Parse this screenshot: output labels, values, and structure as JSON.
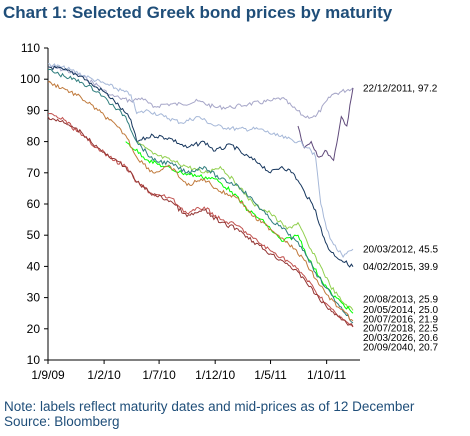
{
  "title": "Chart 1: Selected Greek bond prices by maturity",
  "note": "Note: labels reflect maturity dates and mid-prices as of 12 December",
  "source": "Source: Bloomberg",
  "chart_data": {
    "type": "line",
    "title": "Chart 1: Selected Greek bond prices by maturity",
    "xlabel": "",
    "ylabel": "",
    "ylim": [
      10,
      110
    ],
    "yticks": [
      10,
      20,
      30,
      40,
      50,
      60,
      70,
      80,
      90,
      100,
      110
    ],
    "xlim": [
      "2009-09-01",
      "2011-12-31"
    ],
    "xticks": [
      {
        "date": "2009-09-01",
        "label": "1/9/09"
      },
      {
        "date": "2010-02-01",
        "label": "1/2/10"
      },
      {
        "date": "2010-07-01",
        "label": "1/7/10"
      },
      {
        "date": "2010-12-01",
        "label": "1/12/10"
      },
      {
        "date": "2011-05-01",
        "label": "1/5/11"
      },
      {
        "date": "2011-10-01",
        "label": "1/10/11"
      }
    ],
    "grid": false,
    "legend": "end-labels",
    "series": [
      {
        "name": "22/12/2011, 97.2",
        "color": "#a6a6c8",
        "points": [
          [
            "2009-09-01",
            104
          ],
          [
            "2009-10-15",
            103
          ],
          [
            "2009-12-01",
            101
          ],
          [
            "2010-01-15",
            98
          ],
          [
            "2010-02-15",
            95
          ],
          [
            "2010-03-15",
            94
          ],
          [
            "2010-04-15",
            93
          ],
          [
            "2010-05-15",
            94
          ],
          [
            "2010-06-15",
            91
          ],
          [
            "2010-07-15",
            92
          ],
          [
            "2010-09-01",
            92
          ],
          [
            "2010-10-15",
            93
          ],
          [
            "2010-12-01",
            91
          ],
          [
            "2011-01-15",
            91
          ],
          [
            "2011-03-01",
            92
          ],
          [
            "2011-05-01",
            93
          ],
          [
            "2011-06-01",
            94
          ],
          [
            "2011-07-01",
            91
          ],
          [
            "2011-08-01",
            88
          ],
          [
            "2011-09-01",
            88
          ],
          [
            "2011-10-15",
            95
          ],
          [
            "2011-12-12",
            97.2
          ]
        ]
      },
      {
        "name": "22/12/2011, 97.2",
        "color": "#604a7b",
        "points": [
          [
            "2011-07-15",
            85
          ],
          [
            "2011-08-01",
            78
          ],
          [
            "2011-08-20",
            80
          ],
          [
            "2011-09-10",
            75
          ],
          [
            "2011-10-01",
            77
          ],
          [
            "2011-10-20",
            74
          ],
          [
            "2011-11-10",
            88
          ],
          [
            "2011-11-25",
            85
          ],
          [
            "2011-12-12",
            97.2
          ]
        ]
      },
      {
        "name": "20/03/2012, 45.5",
        "color": "#a6b8d8",
        "points": [
          [
            "2009-09-01",
            105
          ],
          [
            "2009-11-01",
            103
          ],
          [
            "2010-01-01",
            100
          ],
          [
            "2010-02-15",
            98
          ],
          [
            "2010-04-15",
            95
          ],
          [
            "2010-05-01",
            89
          ],
          [
            "2010-06-01",
            90
          ],
          [
            "2010-07-15",
            88
          ],
          [
            "2010-09-01",
            86
          ],
          [
            "2010-10-15",
            88
          ],
          [
            "2010-12-01",
            85
          ],
          [
            "2011-02-01",
            84
          ],
          [
            "2011-04-01",
            84
          ],
          [
            "2011-05-15",
            82
          ],
          [
            "2011-06-15",
            81
          ],
          [
            "2011-07-15",
            80
          ],
          [
            "2011-08-15",
            78
          ],
          [
            "2011-09-01",
            75
          ],
          [
            "2011-09-15",
            60
          ],
          [
            "2011-10-01",
            52
          ],
          [
            "2011-10-20",
            47
          ],
          [
            "2011-11-15",
            43
          ],
          [
            "2011-12-12",
            45.5
          ]
        ]
      },
      {
        "name": "04/02/2015, 39.9",
        "color": "#17375e",
        "points": [
          [
            "2009-09-01",
            104
          ],
          [
            "2009-10-15",
            103
          ],
          [
            "2009-12-01",
            101
          ],
          [
            "2010-01-01",
            98
          ],
          [
            "2010-02-01",
            96
          ],
          [
            "2010-03-01",
            93
          ],
          [
            "2010-04-15",
            87
          ],
          [
            "2010-05-01",
            80
          ],
          [
            "2010-06-15",
            82
          ],
          [
            "2010-08-01",
            81
          ],
          [
            "2010-09-15",
            78
          ],
          [
            "2010-11-01",
            80
          ],
          [
            "2010-12-01",
            77
          ],
          [
            "2011-01-15",
            79
          ],
          [
            "2011-02-15",
            76
          ],
          [
            "2011-04-01",
            73
          ],
          [
            "2011-05-01",
            70
          ],
          [
            "2011-06-01",
            72
          ],
          [
            "2011-07-01",
            70
          ],
          [
            "2011-08-01",
            64
          ],
          [
            "2011-09-01",
            58
          ],
          [
            "2011-09-20",
            50
          ],
          [
            "2011-10-10",
            45
          ],
          [
            "2011-11-10",
            42
          ],
          [
            "2011-12-12",
            39.9
          ]
        ]
      },
      {
        "name": "20/08/2013, 25.9",
        "color": "#92d050",
        "points": [
          [
            "2010-05-01",
            80
          ],
          [
            "2010-06-15",
            76
          ],
          [
            "2010-08-01",
            74
          ],
          [
            "2010-09-15",
            72
          ],
          [
            "2010-11-01",
            70
          ],
          [
            "2010-12-15",
            72
          ],
          [
            "2011-02-01",
            66
          ],
          [
            "2011-03-15",
            60
          ],
          [
            "2011-05-01",
            57
          ],
          [
            "2011-06-15",
            52
          ],
          [
            "2011-07-15",
            54
          ],
          [
            "2011-08-15",
            46
          ],
          [
            "2011-09-15",
            40
          ],
          [
            "2011-10-10",
            34
          ],
          [
            "2011-11-10",
            29
          ],
          [
            "2011-12-12",
            25.9
          ]
        ]
      },
      {
        "name": "20/05/2014, 25.0",
        "color": "#00ff00",
        "points": [
          [
            "2010-04-01",
            80
          ],
          [
            "2010-06-01",
            74
          ],
          [
            "2010-07-15",
            72
          ],
          [
            "2010-09-01",
            70
          ],
          [
            "2010-10-15",
            69
          ],
          [
            "2010-12-01",
            68
          ],
          [
            "2011-01-15",
            64
          ],
          [
            "2011-03-01",
            58
          ],
          [
            "2011-04-15",
            54
          ],
          [
            "2011-06-01",
            48
          ],
          [
            "2011-07-15",
            50
          ],
          [
            "2011-08-15",
            42
          ],
          [
            "2011-09-15",
            36
          ],
          [
            "2011-10-15",
            31
          ],
          [
            "2011-11-15",
            28
          ],
          [
            "2011-12-12",
            25.0
          ]
        ]
      },
      {
        "name": "20/07/2016, 21.9",
        "color": "#2e7d7d",
        "points": [
          [
            "2009-09-01",
            103
          ],
          [
            "2009-10-15",
            101
          ],
          [
            "2009-12-01",
            99
          ],
          [
            "2010-01-15",
            96
          ],
          [
            "2010-03-01",
            91
          ],
          [
            "2010-04-01",
            88
          ],
          [
            "2010-05-01",
            80
          ],
          [
            "2010-06-15",
            74
          ],
          [
            "2010-08-01",
            73
          ],
          [
            "2010-09-15",
            70
          ],
          [
            "2010-11-01",
            72
          ],
          [
            "2010-12-15",
            68
          ],
          [
            "2011-02-01",
            66
          ],
          [
            "2011-03-15",
            61
          ],
          [
            "2011-05-01",
            55
          ],
          [
            "2011-06-15",
            51
          ],
          [
            "2011-08-01",
            45
          ],
          [
            "2011-09-01",
            38
          ],
          [
            "2011-10-01",
            33
          ],
          [
            "2011-11-01",
            28
          ],
          [
            "2011-12-12",
            21.9
          ]
        ]
      },
      {
        "name": "20/07/2018, 22.5",
        "color": "#c07a3c",
        "points": [
          [
            "2009-09-01",
            99
          ],
          [
            "2009-10-15",
            97
          ],
          [
            "2009-12-01",
            94
          ],
          [
            "2010-01-15",
            90
          ],
          [
            "2010-02-15",
            87
          ],
          [
            "2010-04-01",
            82
          ],
          [
            "2010-05-01",
            75
          ],
          [
            "2010-06-15",
            70
          ],
          [
            "2010-08-01",
            72
          ],
          [
            "2010-09-15",
            66
          ],
          [
            "2010-11-01",
            68
          ],
          [
            "2010-12-15",
            64
          ],
          [
            "2011-02-01",
            62
          ],
          [
            "2011-03-15",
            56
          ],
          [
            "2011-05-01",
            52
          ],
          [
            "2011-06-15",
            48
          ],
          [
            "2011-08-01",
            42
          ],
          [
            "2011-09-01",
            36
          ],
          [
            "2011-10-01",
            31
          ],
          [
            "2011-11-01",
            27
          ],
          [
            "2011-12-12",
            22.5
          ]
        ]
      },
      {
        "name": "20/03/2026, 20.6",
        "color": "#c0504d",
        "points": [
          [
            "2009-09-01",
            89
          ],
          [
            "2009-10-15",
            87
          ],
          [
            "2009-12-01",
            82
          ],
          [
            "2010-01-15",
            78
          ],
          [
            "2010-02-15",
            75
          ],
          [
            "2010-04-01",
            72
          ],
          [
            "2010-05-01",
            67
          ],
          [
            "2010-06-15",
            63
          ],
          [
            "2010-08-01",
            62
          ],
          [
            "2010-09-15",
            57
          ],
          [
            "2010-11-01",
            59
          ],
          [
            "2010-12-15",
            55
          ],
          [
            "2011-02-01",
            53
          ],
          [
            "2011-03-15",
            49
          ],
          [
            "2011-05-01",
            45
          ],
          [
            "2011-06-15",
            42
          ],
          [
            "2011-08-01",
            37
          ],
          [
            "2011-09-01",
            32
          ],
          [
            "2011-10-01",
            28
          ],
          [
            "2011-11-01",
            24
          ],
          [
            "2011-12-12",
            20.6
          ]
        ]
      },
      {
        "name": "20/09/2040, 20.7",
        "color": "#943634",
        "points": [
          [
            "2009-09-01",
            88
          ],
          [
            "2009-10-15",
            86
          ],
          [
            "2009-12-01",
            83
          ],
          [
            "2010-01-15",
            78
          ],
          [
            "2010-02-15",
            75
          ],
          [
            "2010-04-01",
            72
          ],
          [
            "2010-05-01",
            67
          ],
          [
            "2010-06-15",
            63
          ],
          [
            "2010-08-01",
            61
          ],
          [
            "2010-09-15",
            56
          ],
          [
            "2010-11-01",
            58
          ],
          [
            "2010-12-15",
            54
          ],
          [
            "2011-02-01",
            52
          ],
          [
            "2011-03-15",
            48
          ],
          [
            "2011-05-01",
            44
          ],
          [
            "2011-06-15",
            41
          ],
          [
            "2011-08-01",
            36
          ],
          [
            "2011-09-01",
            31
          ],
          [
            "2011-10-01",
            27
          ],
          [
            "2011-11-01",
            24
          ],
          [
            "2011-12-12",
            20.7
          ]
        ]
      }
    ],
    "labels": [
      {
        "text": "22/12/2011, 97.2",
        "y": 97.2
      },
      {
        "text": "20/03/2012, 45.5",
        "y": 45.5
      },
      {
        "text": "04/02/2015, 39.9",
        "y": 39.9
      },
      {
        "text": "20/08/2013, 25.9",
        "y": 29.5
      },
      {
        "text": "20/05/2014, 25.0",
        "y": 26.2
      },
      {
        "text": "20/07/2016, 21.9",
        "y": 23.2
      },
      {
        "text": "20/07/2018, 22.5",
        "y": 20.2
      },
      {
        "text": "20/03/2026, 20.6",
        "y": 17.2
      },
      {
        "text": "20/09/2040, 20.7",
        "y": 14.2
      }
    ]
  }
}
